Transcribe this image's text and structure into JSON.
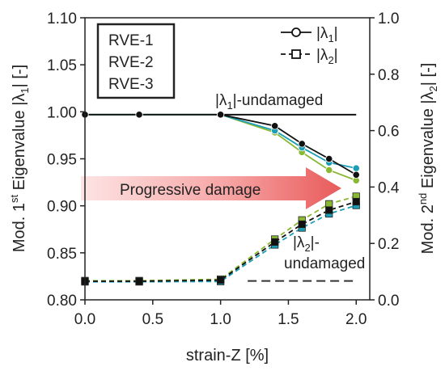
{
  "chart_data": {
    "type": "line",
    "xlabel": "strain-Z [%]",
    "ylabel_left_parts": [
      "Mod. 1",
      "st",
      " Eigenvalue  |λ",
      "1",
      "|  [-]"
    ],
    "ylabel_right_parts": [
      "Mod. 2",
      "nd",
      " Eigenvalue  |λ",
      "2",
      "|  [-]"
    ],
    "xlim": [
      0.0,
      2.1
    ],
    "ylim_left": [
      0.8,
      1.1
    ],
    "ylim_right": [
      0.0,
      1.0
    ],
    "x_ticks": [
      "0.0",
      "0.5",
      "1.0",
      "1.5",
      "2.0"
    ],
    "y_left_ticks": [
      "0.80",
      "0.85",
      "0.90",
      "0.95",
      "1.00",
      "1.05",
      "1.10"
    ],
    "y_right_ticks": [
      "0.0",
      "0.2",
      "0.4",
      "0.6",
      "0.8",
      "1.0"
    ],
    "x": [
      0.0,
      0.4,
      1.0,
      1.4,
      1.6,
      1.8,
      2.0
    ],
    "rve_legend": [
      {
        "name": "RVE-1",
        "color": "#8ab833"
      },
      {
        "name": "RVE-2",
        "color": "#1b9eb5"
      },
      {
        "name": "RVE-3",
        "color": "#111111"
      }
    ],
    "marker_legend": [
      {
        "pre": "|λ",
        "sub": "1",
        "post": "|",
        "marker": "circle",
        "dash": "solid"
      },
      {
        "pre": "|λ",
        "sub": "2",
        "post": "|",
        "marker": "square",
        "dash": "dashed"
      }
    ],
    "series": [
      {
        "rve": "RVE-1",
        "quantity": "lambda1",
        "axis": "left",
        "values": [
          0.997,
          0.997,
          0.997,
          0.978,
          0.957,
          0.938,
          0.927
        ]
      },
      {
        "rve": "RVE-2",
        "quantity": "lambda1",
        "axis": "left",
        "values": [
          0.997,
          0.997,
          0.997,
          0.98,
          0.962,
          0.946,
          0.94
        ]
      },
      {
        "rve": "RVE-3",
        "quantity": "lambda1",
        "axis": "left",
        "values": [
          0.997,
          0.997,
          0.997,
          0.985,
          0.966,
          0.95,
          0.933
        ]
      },
      {
        "rve": "RVE-1",
        "quantity": "lambda2",
        "axis": "right",
        "values": [
          0.068,
          0.068,
          0.073,
          0.215,
          0.283,
          0.34,
          0.367
        ]
      },
      {
        "rve": "RVE-2",
        "quantity": "lambda2",
        "axis": "right",
        "values": [
          0.064,
          0.064,
          0.065,
          0.195,
          0.255,
          0.305,
          0.335
        ]
      },
      {
        "rve": "RVE-3",
        "quantity": "lambda2",
        "axis": "right",
        "values": [
          0.066,
          0.066,
          0.07,
          0.205,
          0.268,
          0.318,
          0.348
        ]
      }
    ],
    "reference_lines": [
      {
        "axis": "left",
        "y": 0.997,
        "dash": "solid"
      },
      {
        "axis": "right",
        "y": 0.067,
        "dash": "dashed"
      }
    ],
    "annotations": {
      "lambda1_undamaged": {
        "pre": "|λ",
        "sub": "1",
        "post": "|-undamaged"
      },
      "lambda2_undamaged_line1": {
        "pre": "|λ",
        "sub": "2",
        "post": "|-"
      },
      "lambda2_undamaged_line2": "undamaged",
      "progressive_damage": "Progressive damage"
    },
    "arrow_color": "#e85a5a",
    "grid": false
  }
}
